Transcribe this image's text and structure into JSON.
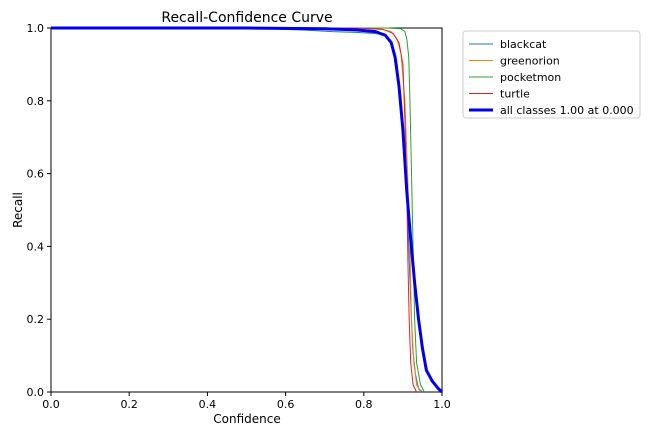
{
  "chart_data": {
    "type": "line",
    "title": "Recall-Confidence Curve",
    "xlabel": "Confidence",
    "ylabel": "Recall",
    "xlim": [
      0,
      1
    ],
    "ylim": [
      0,
      1
    ],
    "x_ticks": [
      "0.0",
      "0.2",
      "0.4",
      "0.6",
      "0.8",
      "1.0"
    ],
    "y_ticks": [
      "0.0",
      "0.2",
      "0.4",
      "0.6",
      "0.8",
      "1.0"
    ],
    "grid": false,
    "legend_position": "outside-top-right",
    "series": [
      {
        "name": "blackcat",
        "color": "#1f77b4",
        "points": [
          [
            0,
            1
          ],
          [
            0.3,
            1
          ],
          [
            0.55,
            0.998
          ],
          [
            0.65,
            0.994
          ],
          [
            0.72,
            0.99
          ],
          [
            0.78,
            0.988
          ],
          [
            0.83,
            0.985
          ],
          [
            0.855,
            0.98
          ],
          [
            0.87,
            0.965
          ],
          [
            0.885,
            0.9
          ],
          [
            0.895,
            0.8
          ],
          [
            0.905,
            0.68
          ],
          [
            0.91,
            0.55
          ],
          [
            0.915,
            0.4
          ],
          [
            0.92,
            0.25
          ],
          [
            0.925,
            0.12
          ],
          [
            0.932,
            0.05
          ],
          [
            0.94,
            0.01
          ],
          [
            0.95,
            0
          ]
        ]
      },
      {
        "name": "greenorion",
        "color": "#ff7f0e",
        "points": [
          [
            0,
            1
          ],
          [
            0.75,
            1
          ],
          [
            0.84,
            0.998
          ],
          [
            0.87,
            0.99
          ],
          [
            0.885,
            0.97
          ],
          [
            0.895,
            0.93
          ],
          [
            0.905,
            0.8
          ],
          [
            0.912,
            0.6
          ],
          [
            0.918,
            0.4
          ],
          [
            0.922,
            0.2
          ],
          [
            0.928,
            0.08
          ],
          [
            0.935,
            0.02
          ],
          [
            0.945,
            0
          ]
        ]
      },
      {
        "name": "pocketmon",
        "color": "#2ca02c",
        "points": [
          [
            0,
            1
          ],
          [
            0.86,
            1
          ],
          [
            0.895,
            0.998
          ],
          [
            0.905,
            0.99
          ],
          [
            0.91,
            0.97
          ],
          [
            0.915,
            0.92
          ],
          [
            0.918,
            0.8
          ],
          [
            0.922,
            0.6
          ],
          [
            0.926,
            0.4
          ],
          [
            0.93,
            0.2
          ],
          [
            0.935,
            0.08
          ],
          [
            0.945,
            0.02
          ],
          [
            0.955,
            0
          ]
        ]
      },
      {
        "name": "turtle",
        "color": "#d62728",
        "points": [
          [
            0,
            1
          ],
          [
            0.78,
            1
          ],
          [
            0.85,
            0.996
          ],
          [
            0.875,
            0.985
          ],
          [
            0.89,
            0.96
          ],
          [
            0.9,
            0.9
          ],
          [
            0.905,
            0.75
          ],
          [
            0.91,
            0.55
          ],
          [
            0.913,
            0.35
          ],
          [
            0.916,
            0.2
          ],
          [
            0.92,
            0.08
          ],
          [
            0.926,
            0.02
          ],
          [
            0.935,
            0
          ]
        ]
      },
      {
        "name": "all classes 1.00 at 0.000",
        "color": "#0000ee",
        "bold": true,
        "points": [
          [
            0,
            1
          ],
          [
            0.5,
            1
          ],
          [
            0.7,
            0.998
          ],
          [
            0.78,
            0.995
          ],
          [
            0.83,
            0.99
          ],
          [
            0.855,
            0.98
          ],
          [
            0.87,
            0.96
          ],
          [
            0.88,
            0.92
          ],
          [
            0.89,
            0.84
          ],
          [
            0.9,
            0.72
          ],
          [
            0.91,
            0.55
          ],
          [
            0.92,
            0.42
          ],
          [
            0.93,
            0.3
          ],
          [
            0.94,
            0.2
          ],
          [
            0.95,
            0.12
          ],
          [
            0.96,
            0.06
          ],
          [
            0.975,
            0.03
          ],
          [
            0.99,
            0.01
          ],
          [
            1,
            0
          ]
        ]
      }
    ]
  }
}
